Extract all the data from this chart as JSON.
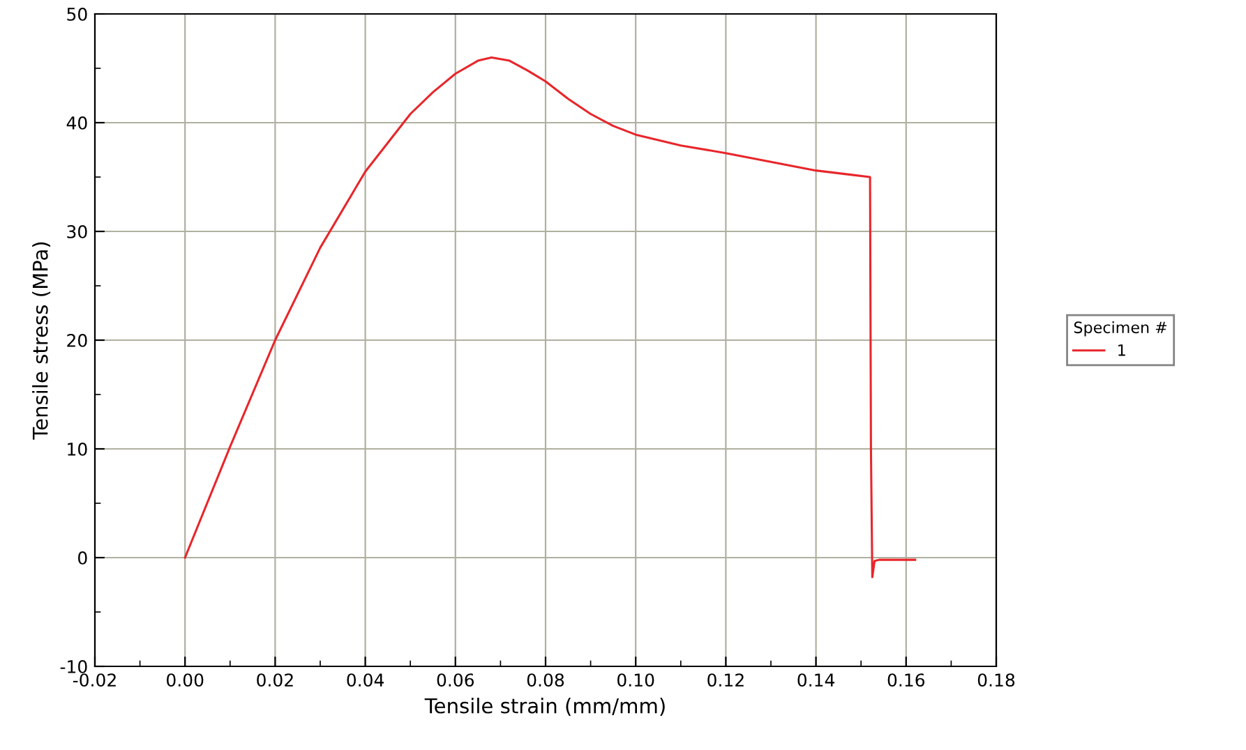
{
  "chart_data": {
    "type": "line",
    "xlabel": "Tensile strain (mm/mm)",
    "ylabel": "Tensile stress (MPa)",
    "legend_title": "Specimen #",
    "series": [
      {
        "name": "1",
        "color": "#e8262b",
        "x": [
          0,
          0.01,
          0.02,
          0.03,
          0.04,
          0.05,
          0.055,
          0.06,
          0.065,
          0.068,
          0.072,
          0.076,
          0.08,
          0.085,
          0.09,
          0.095,
          0.1,
          0.11,
          0.12,
          0.13,
          0.14,
          0.148,
          0.152,
          0.1522,
          0.1525,
          0.153,
          0.154,
          0.158,
          0.162
        ],
        "values": [
          0,
          10.2,
          20,
          28.5,
          35.5,
          40.8,
          42.8,
          44.5,
          45.7,
          46,
          45.7,
          44.8,
          43.8,
          42.2,
          40.8,
          39.7,
          38.9,
          37.9,
          37.2,
          36.4,
          35.6,
          35.2,
          35,
          10,
          -1.8,
          -0.3,
          -0.2,
          -0.2,
          -0.2
        ]
      }
    ],
    "xlim": [
      -0.02,
      0.18
    ],
    "xticks": [
      {
        "value": -0.02,
        "label": "-0.02"
      },
      {
        "value": 0,
        "label": "0.00"
      },
      {
        "value": 0.02,
        "label": "0.02"
      },
      {
        "value": 0.04,
        "label": "0.04"
      },
      {
        "value": 0.06,
        "label": "0.06"
      },
      {
        "value": 0.08,
        "label": "0.08"
      },
      {
        "value": 0.1,
        "label": "0.10"
      },
      {
        "value": 0.12,
        "label": "0.12"
      },
      {
        "value": 0.14,
        "label": "0.14"
      },
      {
        "value": 0.16,
        "label": "0.16"
      },
      {
        "value": 0.18,
        "label": "0.18"
      }
    ],
    "ylim": [
      -10,
      50
    ],
    "yticks": [
      -10,
      0,
      10,
      20,
      30,
      40,
      50
    ],
    "grid": true,
    "legend": "right",
    "marker": "none",
    "line_style": "solid"
  }
}
